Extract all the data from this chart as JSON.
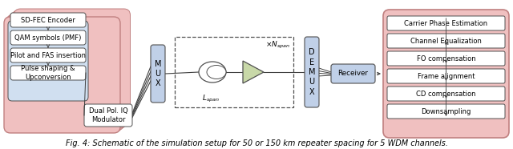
{
  "fig_caption": "Fig. 4: Schematic of the simulation setup for 50 or 150 km repeater spacing for 5 WDM channels.",
  "pink": "#f0c0c0",
  "pink_dark": "#d09090",
  "blue_fill": "#c0d0e8",
  "blue_fill_light": "#d0dff0",
  "white": "#ffffff",
  "edge_dark": "#505050",
  "edge_pink": "#c08080",
  "arrow_color": "#404040",
  "amp_fill": "#c8d8a8",
  "text_color": "#000000",
  "caption_fontsize": 7.0,
  "label_fontsize": 6.5,
  "small_fontsize": 6.0,
  "tx_blocks": [
    "SD-FEC Encoder",
    "QAM symbols (PMF)",
    "Pilot and FAS insertion",
    "Pulse shaping &\nUpconversion"
  ],
  "dsp_blocks": [
    "Carrier Phase Estimation",
    "Channel Equalization",
    "FO compensation",
    "Frame alignment",
    "CD compensation",
    "Downsampling"
  ],
  "modulator_label": "Dual Pol. IQ\nModulator",
  "mux_label": "M\nU\nX",
  "demux_label": "D\nE\nM\nU\nX",
  "receiver_label": "Receiver"
}
